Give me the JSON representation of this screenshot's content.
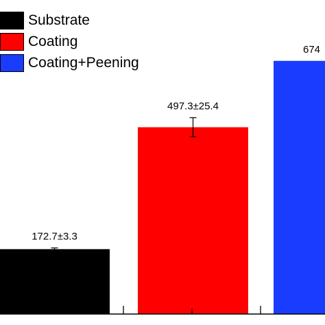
{
  "chart_data": {
    "type": "bar",
    "categories": [
      "Substrate",
      "Coating",
      "Coating+Peening"
    ],
    "values": [
      172.7,
      497.3,
      674
    ],
    "errors": [
      3.3,
      25.4,
      null
    ],
    "data_labels": [
      "172.7±3.3",
      "497.3±25.4",
      "674"
    ],
    "colors": [
      "#000000",
      "#ff0000",
      "#1a3cff"
    ],
    "legend": [
      "Substrate",
      "Coating",
      "Coating+Peening"
    ],
    "legend_placement": "top-left",
    "ylim": [
      0,
      836
    ],
    "grid": false,
    "title": "",
    "xlabel": "",
    "ylabel": ""
  }
}
